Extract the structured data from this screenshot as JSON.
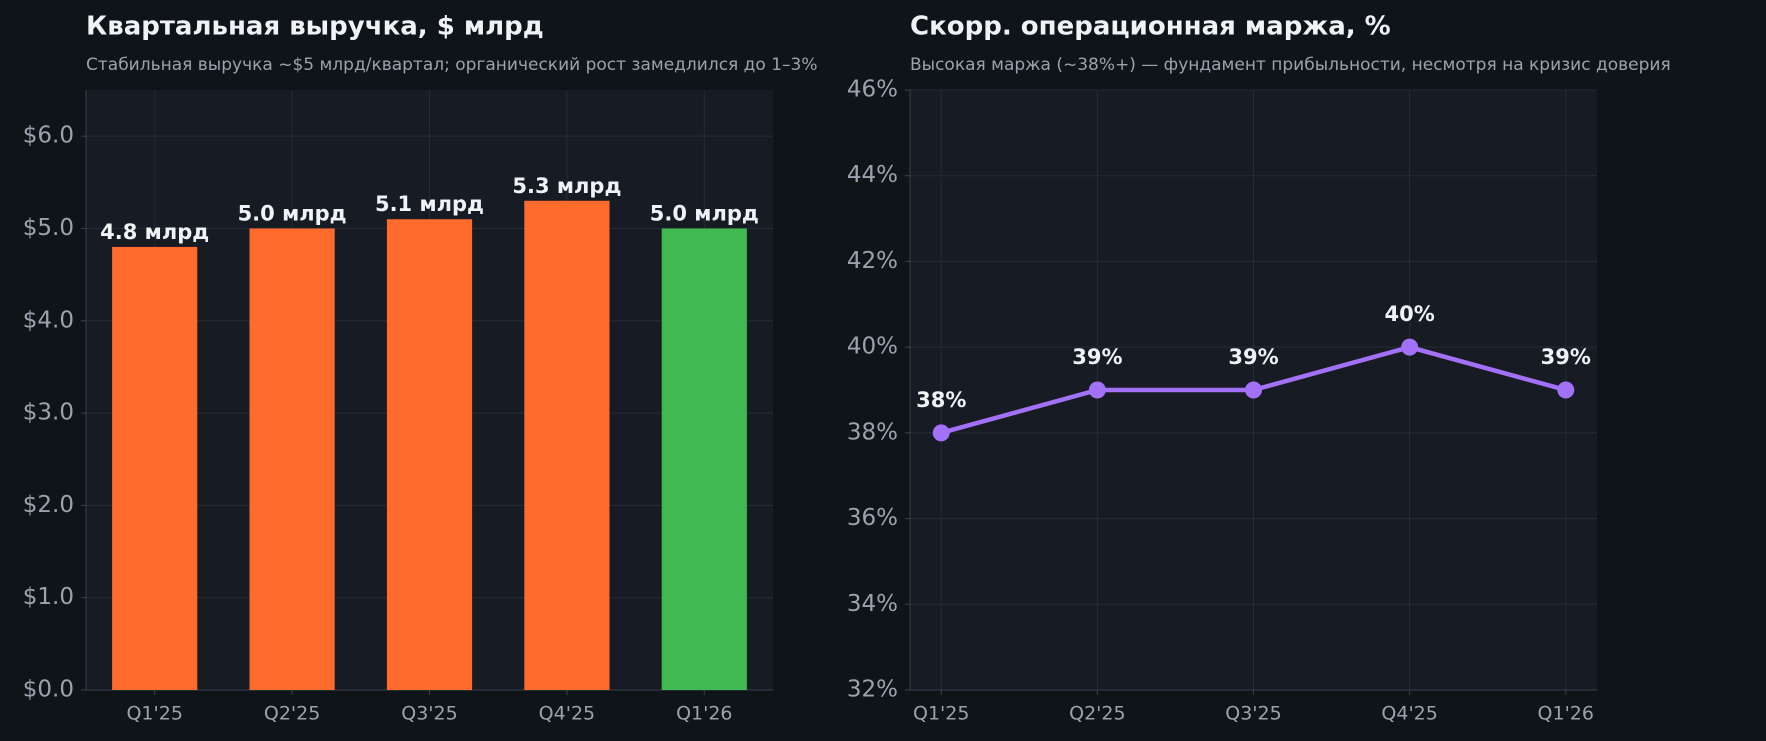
{
  "chart_data": [
    {
      "type": "bar",
      "title": "Квартальная выручка, $ млрд",
      "subtitle": "Стабильная выручка ~$5 млрд/квартал; органический рост замедлился до 1–3%",
      "categories": [
        "Q1'25",
        "Q2'25",
        "Q3'25",
        "Q4'25",
        "Q1'26"
      ],
      "values": [
        4.8,
        5.0,
        5.1,
        5.3,
        5.0
      ],
      "value_labels": [
        "4.8 млрд",
        "5.0 млрд",
        "5.1 млрд",
        "5.3 млрд",
        "5.0 млрд"
      ],
      "colors": [
        "#ff6b2c",
        "#ff6b2c",
        "#ff6b2c",
        "#ff6b2c",
        "#3fb950"
      ],
      "ylim": [
        0,
        6.5
      ],
      "yticks": [
        {
          "value": 0,
          "label": "$0.0"
        },
        {
          "value": 1,
          "label": "$1.0"
        },
        {
          "value": 2,
          "label": "$2.0"
        },
        {
          "value": 3,
          "label": "$3.0"
        },
        {
          "value": 4,
          "label": "$4.0"
        },
        {
          "value": 5,
          "label": "$5.0"
        },
        {
          "value": 6,
          "label": "$6.0"
        }
      ],
      "grid": true
    },
    {
      "type": "line",
      "title": "Скорр. операционная маржа, %",
      "subtitle": "Высокая маржа (~38%+) — фундамент прибыльности, несмотря на кризис доверия",
      "categories": [
        "Q1'25",
        "Q2'25",
        "Q3'25",
        "Q4'25",
        "Q1'26"
      ],
      "values": [
        38,
        39,
        39,
        40,
        39
      ],
      "value_labels": [
        "38%",
        "39%",
        "39%",
        "40%",
        "39%"
      ],
      "color": "#a371f7",
      "ylim": [
        32,
        46
      ],
      "yticks": [
        {
          "value": 32,
          "label": "32%"
        },
        {
          "value": 34,
          "label": "34%"
        },
        {
          "value": 36,
          "label": "36%"
        },
        {
          "value": 38,
          "label": "38%"
        },
        {
          "value": 40,
          "label": "40%"
        },
        {
          "value": 42,
          "label": "42%"
        },
        {
          "value": 44,
          "label": "44%"
        },
        {
          "value": 46,
          "label": "46%"
        }
      ],
      "grid": true
    }
  ]
}
